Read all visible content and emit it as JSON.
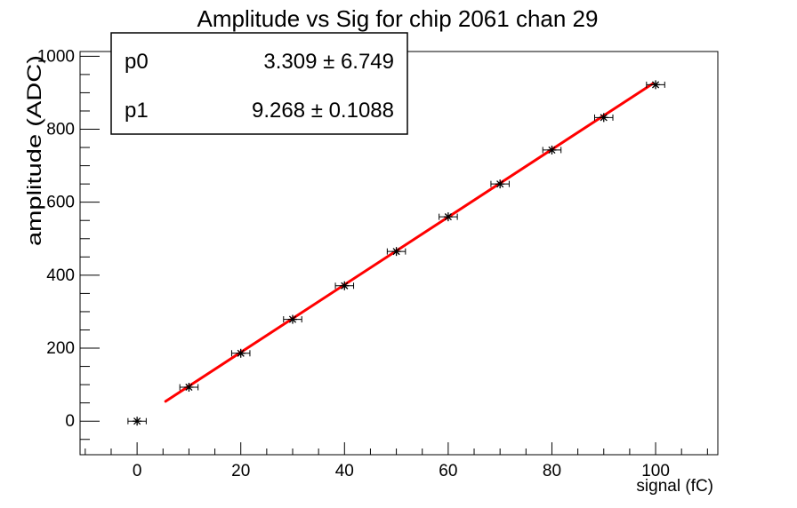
{
  "window": {
    "background": "#ffffff",
    "frame_color": "#000000"
  },
  "chart_data": {
    "type": "scatter",
    "title": "Amplitude vs Sig for chip 2061 chan 29",
    "xlabel": "signal (fC)",
    "ylabel": "amplitude (ADC)",
    "xlim": [
      -11,
      112
    ],
    "ylim": [
      -92,
      1013
    ],
    "x_major_ticks": [
      0,
      20,
      40,
      60,
      80,
      100
    ],
    "x_minor_step": 5,
    "y_major_ticks": [
      0,
      200,
      400,
      600,
      800,
      1000
    ],
    "y_minor_step": 50,
    "grid": false,
    "legend": null,
    "series": [
      {
        "name": "amplitude-vs-signal-data",
        "marker": "asterisk",
        "color": "#000000",
        "x": [
          0,
          10,
          20,
          30,
          40,
          50,
          60,
          70,
          80,
          90,
          100
        ],
        "y": [
          0,
          93,
          186,
          279,
          371,
          465,
          560,
          650,
          743,
          832,
          922
        ],
        "xerr": 1.5
      }
    ],
    "fit": {
      "type": "linear",
      "color": "#ff0000",
      "line_width": 3,
      "p0": 3.309,
      "p1": 9.268,
      "x_range": [
        5.5,
        99.5
      ]
    },
    "stats_box": {
      "rows": [
        {
          "param": "p0",
          "value": "3.309 ± 6.749"
        },
        {
          "param": "p1",
          "value": "9.268 ± 0.1088"
        }
      ]
    }
  }
}
